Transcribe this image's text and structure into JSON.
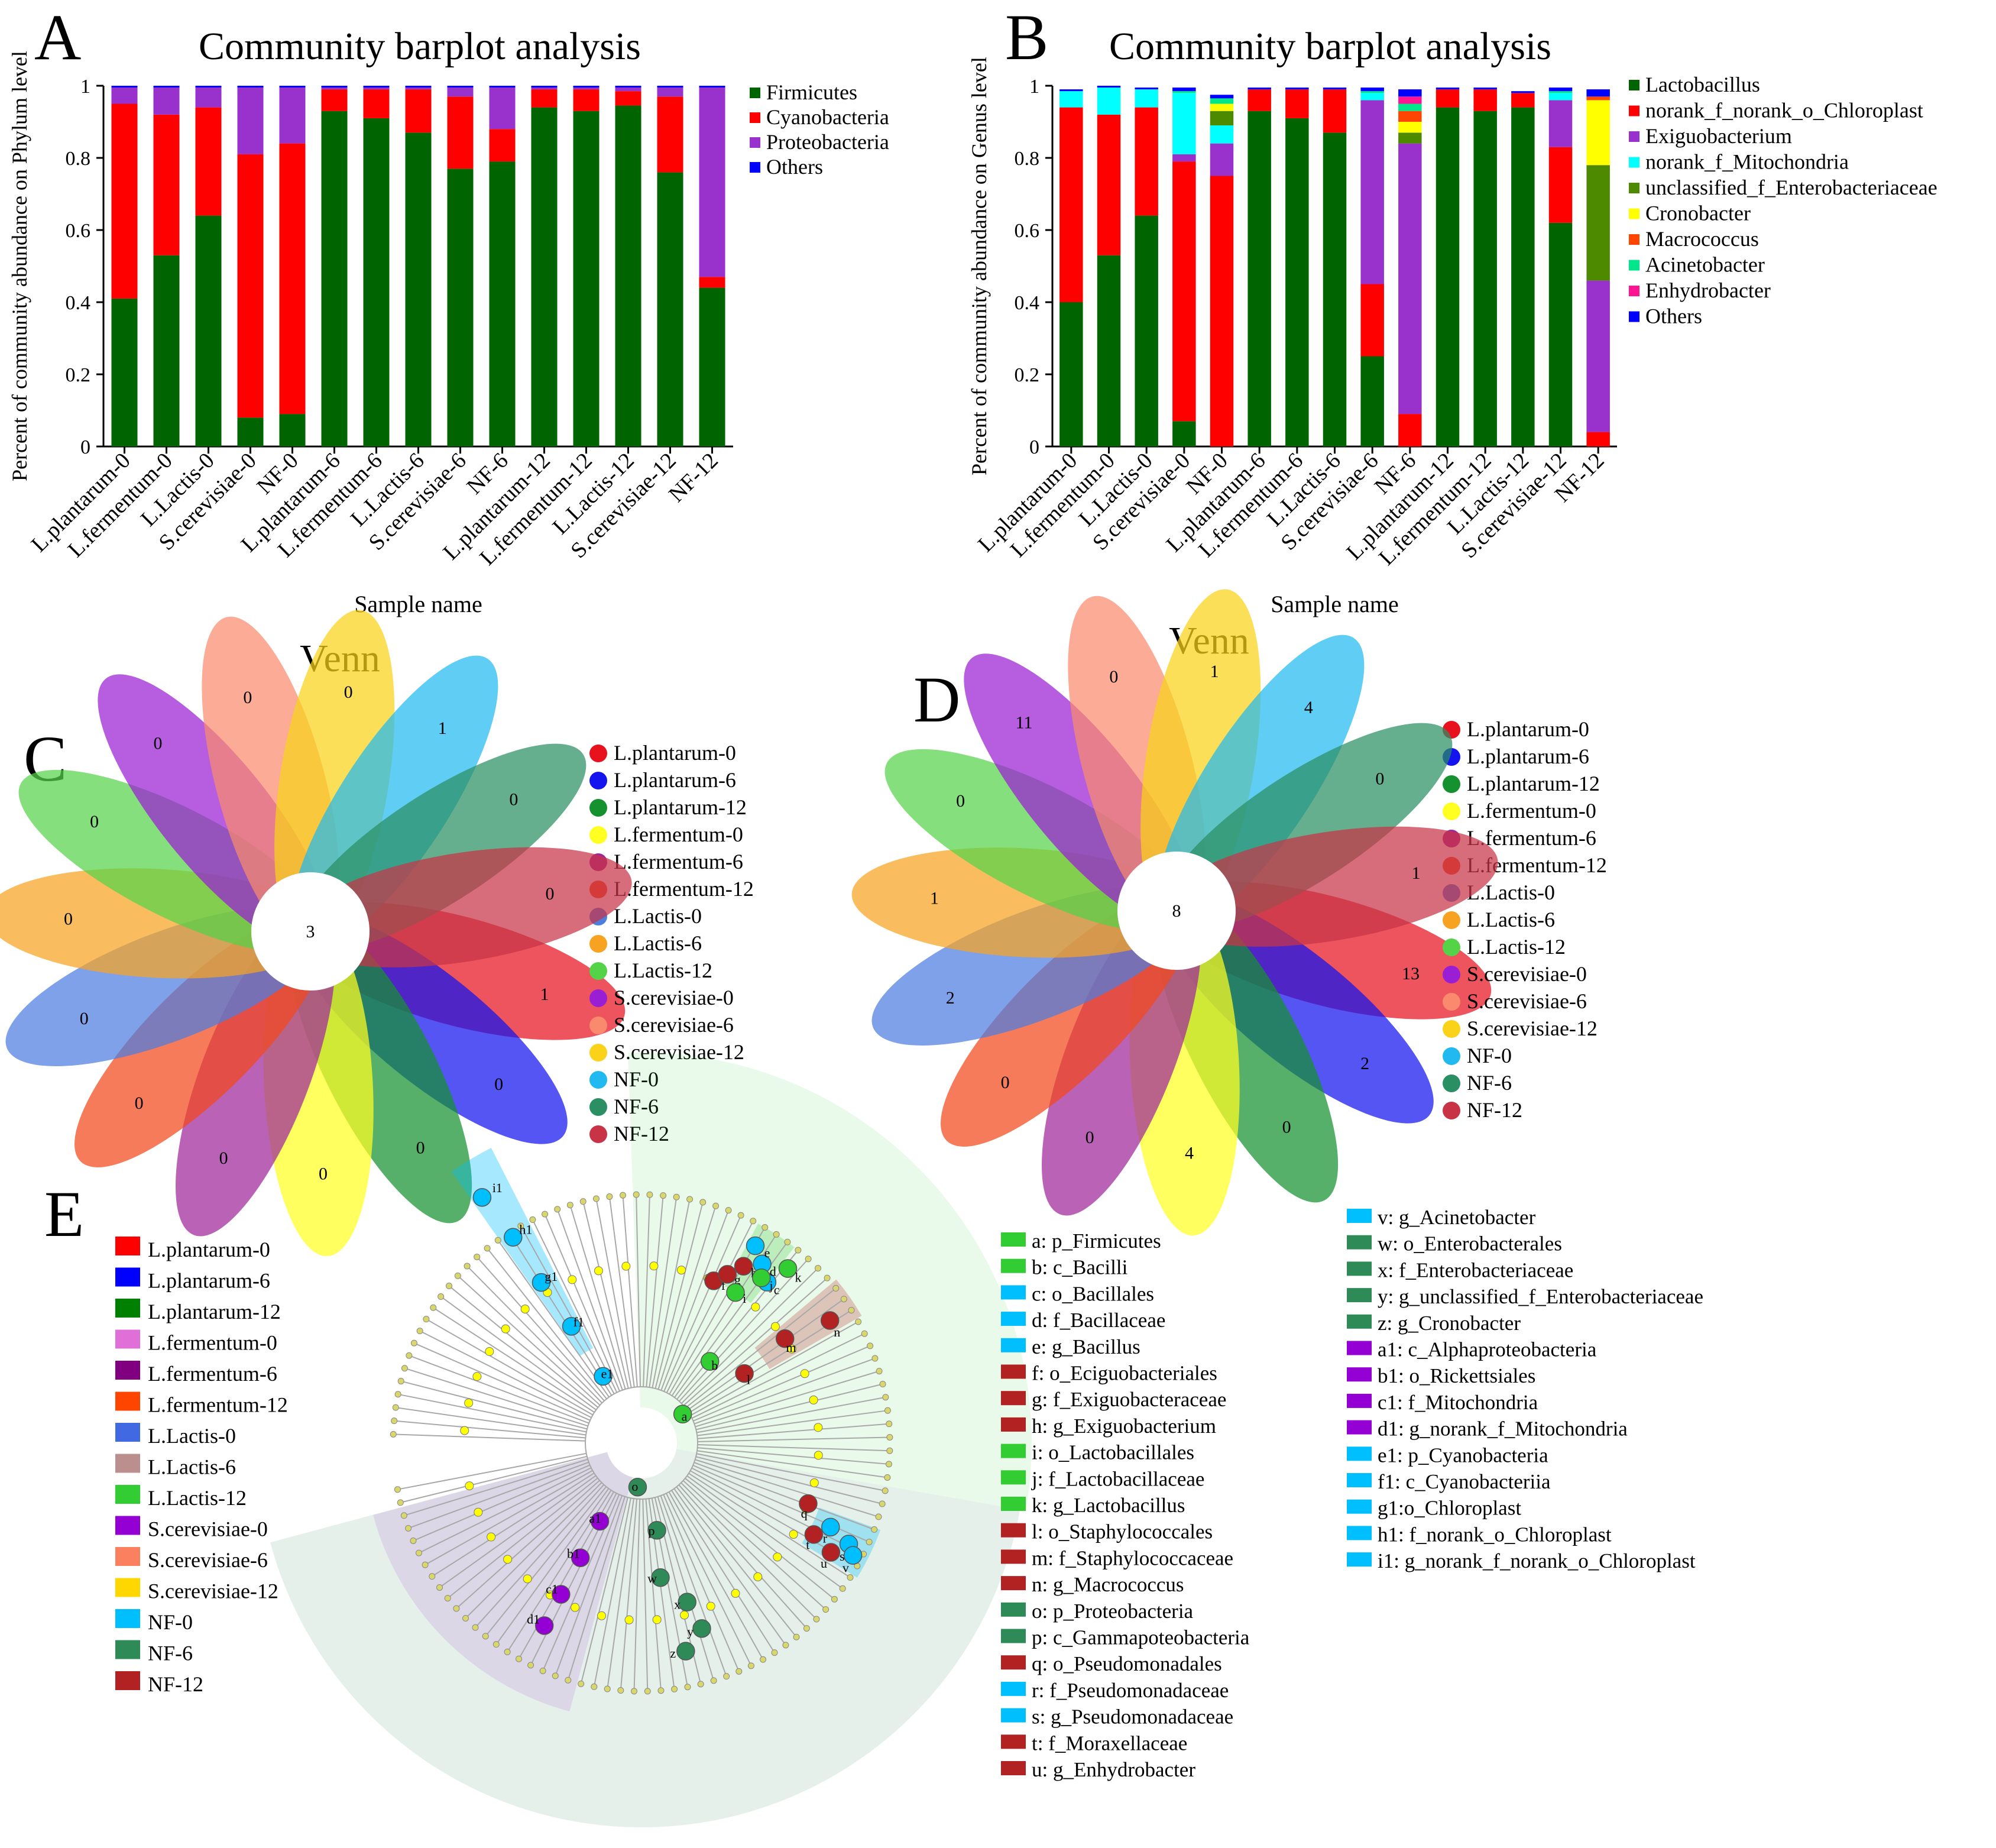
{
  "panel_labels": [
    "A",
    "B",
    "C",
    "D",
    "E"
  ],
  "colors": {
    "green": "#006400",
    "red": "#ff0000",
    "purple": "#9932cc",
    "blue": "#0000ff",
    "cyan": "#00ffff",
    "olive": "#4e8a00",
    "yellow": "#ffff00",
    "orange": "#ff4500",
    "springgreen": "#00e68a",
    "pink": "#ff1493"
  },
  "chart_data": [
    {
      "type": "bar",
      "stacked": true,
      "panel": "A",
      "title": "Community barplot analysis",
      "xlabel": "Sample name",
      "ylabel": "Percent of community abundance on Phylum level",
      "ylim": [
        0,
        1
      ],
      "yticks": [
        "0",
        "0.2",
        "0.4",
        "0.6",
        "0.8",
        "1"
      ],
      "categories": [
        "L.plantarum-0",
        "L.fermentum-0",
        "L.Lactis-0",
        "S.cerevisiae-0",
        "NF-0",
        "L.plantarum-6",
        "L.fermentum-6",
        "L.Lactis-6",
        "S.cerevisiae-6",
        "NF-6",
        "L.plantarum-12",
        "L.fermentum-12",
        "L.Lactis-12",
        "S.cerevisiae-12",
        "NF-12"
      ],
      "series": [
        {
          "name": "Firmicutes",
          "color": "#006400",
          "values": [
            0.41,
            0.53,
            0.64,
            0.08,
            0.09,
            0.93,
            0.91,
            0.87,
            0.77,
            0.79,
            0.94,
            0.93,
            0.945,
            0.76,
            0.44
          ]
        },
        {
          "name": "Cyanobacteria",
          "color": "#ff0000",
          "values": [
            0.54,
            0.39,
            0.3,
            0.73,
            0.75,
            0.06,
            0.08,
            0.12,
            0.2,
            0.09,
            0.05,
            0.06,
            0.04,
            0.21,
            0.03
          ]
        },
        {
          "name": "Proteobacteria",
          "color": "#9932cc",
          "values": [
            0.045,
            0.075,
            0.055,
            0.185,
            0.155,
            0.005,
            0.005,
            0.005,
            0.025,
            0.115,
            0.005,
            0.005,
            0.01,
            0.025,
            0.525
          ]
        },
        {
          "name": "Others",
          "color": "#0000ff",
          "values": [
            0.005,
            0.005,
            0.005,
            0.005,
            0.005,
            0.005,
            0.005,
            0.005,
            0.005,
            0.005,
            0.005,
            0.005,
            0.005,
            0.005,
            0.005
          ]
        }
      ]
    },
    {
      "type": "bar",
      "stacked": true,
      "panel": "B",
      "title": "Community barplot analysis",
      "xlabel": "Sample name",
      "ylabel": "Percent of community abundance on Genus level",
      "ylim": [
        0,
        1
      ],
      "yticks": [
        "0",
        "0.2",
        "0.4",
        "0.6",
        "0.8",
        "1"
      ],
      "categories": [
        "L.plantarum-0",
        "L.fermentum-0",
        "L.Lactis-0",
        "S.cerevisiae-0",
        "NF-0",
        "L.plantarum-6",
        "L.fermentum-6",
        "L.Lactis-6",
        "S.cerevisiae-6",
        "NF-6",
        "L.plantarum-12",
        "L.fermentum-12",
        "L.Lactis-12",
        "S.cerevisiae-12",
        "NF-12"
      ],
      "series": [
        {
          "name": "Lactobacillus",
          "color": "#006400",
          "values": [
            0.4,
            0.53,
            0.64,
            0.07,
            0.0,
            0.93,
            0.91,
            0.87,
            0.25,
            0.0,
            0.94,
            0.93,
            0.94,
            0.62,
            0.0
          ]
        },
        {
          "name": "norank_f_norank_o_Chloroplast",
          "color": "#ff0000",
          "values": [
            0.54,
            0.39,
            0.3,
            0.72,
            0.75,
            0.06,
            0.08,
            0.12,
            0.2,
            0.09,
            0.05,
            0.06,
            0.04,
            0.21,
            0.04
          ]
        },
        {
          "name": "Exiguobacterium",
          "color": "#9932cc",
          "values": [
            0.0,
            0.0,
            0.0,
            0.02,
            0.09,
            0.0,
            0.0,
            0.0,
            0.51,
            0.75,
            0.0,
            0.0,
            0.0,
            0.13,
            0.42
          ]
        },
        {
          "name": "norank_f_Mitochondria",
          "color": "#00ffff",
          "values": [
            0.045,
            0.075,
            0.05,
            0.17,
            0.05,
            0.0,
            0.0,
            0.0,
            0.02,
            0.0,
            0.0,
            0.0,
            0.0,
            0.02,
            0.0
          ]
        },
        {
          "name": "unclassified_f_Enterobacteriaceae",
          "color": "#4e8a00",
          "values": [
            0.0,
            0.0,
            0.0,
            0.0,
            0.04,
            0.0,
            0.0,
            0.0,
            0.0,
            0.03,
            0.0,
            0.0,
            0.0,
            0.0,
            0.32
          ]
        },
        {
          "name": "Cronobacter",
          "color": "#ffff00",
          "values": [
            0.0,
            0.0,
            0.0,
            0.0,
            0.02,
            0.0,
            0.0,
            0.0,
            0.0,
            0.03,
            0.0,
            0.0,
            0.0,
            0.0,
            0.18
          ]
        },
        {
          "name": "Macrococcus",
          "color": "#ff4500",
          "values": [
            0.0,
            0.0,
            0.0,
            0.0,
            0.0,
            0.0,
            0.0,
            0.0,
            0.0,
            0.03,
            0.0,
            0.0,
            0.0,
            0.0,
            0.01
          ]
        },
        {
          "name": "Acinetobacter",
          "color": "#00e68a",
          "values": [
            0.0,
            0.0,
            0.0,
            0.005,
            0.015,
            0.0,
            0.0,
            0.0,
            0.005,
            0.02,
            0.0,
            0.0,
            0.0,
            0.005,
            0.0
          ]
        },
        {
          "name": "Enhydrobacter",
          "color": "#ff1493",
          "values": [
            0.0,
            0.0,
            0.0,
            0.0,
            0.0,
            0.0,
            0.0,
            0.0,
            0.0,
            0.02,
            0.0,
            0.0,
            0.0,
            0.0,
            0.0
          ]
        },
        {
          "name": "Others",
          "color": "#0000ff",
          "values": [
            0.005,
            0.005,
            0.005,
            0.01,
            0.01,
            0.005,
            0.005,
            0.005,
            0.01,
            0.02,
            0.005,
            0.005,
            0.005,
            0.01,
            0.02
          ]
        }
      ]
    },
    {
      "type": "venn",
      "panel": "C",
      "title": "Venn",
      "center": "3",
      "petals": [
        {
          "name": "L.plantarum-0",
          "color": "#e8121e",
          "count": "1"
        },
        {
          "name": "L.plantarum-6",
          "color": "#1414ee",
          "count": "0"
        },
        {
          "name": "L.plantarum-12",
          "color": "#159130",
          "count": "0"
        },
        {
          "name": "L.fermentum-0",
          "color": "#ffff22",
          "count": "0"
        },
        {
          "name": "L.fermentum-6",
          "color": "#a0279a",
          "count": "0"
        },
        {
          "name": "L.fermentum-12",
          "color": "#f2481c",
          "count": "0"
        },
        {
          "name": "L.Lactis-0",
          "color": "#4e7de0",
          "count": "0"
        },
        {
          "name": "L.Lactis-6",
          "color": "#f7a321",
          "count": "0"
        },
        {
          "name": "L.Lactis-12",
          "color": "#54d349",
          "count": "0"
        },
        {
          "name": "S.cerevisiae-0",
          "color": "#9a1ed4",
          "count": "0"
        },
        {
          "name": "S.cerevisiae-6",
          "color": "#fa8a6e",
          "count": "0"
        },
        {
          "name": "S.cerevisiae-12",
          "color": "#fad219",
          "count": "0"
        },
        {
          "name": "NF-0",
          "color": "#21baf0",
          "count": "1"
        },
        {
          "name": "NF-6",
          "color": "#2a8f62",
          "count": "0"
        },
        {
          "name": "NF-12",
          "color": "#c83446",
          "count": "0"
        }
      ]
    },
    {
      "type": "venn",
      "panel": "D",
      "title": "Venn",
      "center": "8",
      "petals": [
        {
          "name": "L.plantarum-0",
          "color": "#e8121e",
          "count": "13"
        },
        {
          "name": "L.plantarum-6",
          "color": "#1414ee",
          "count": "2"
        },
        {
          "name": "L.plantarum-12",
          "color": "#159130",
          "count": "0"
        },
        {
          "name": "L.fermentum-0",
          "color": "#ffff22",
          "count": "4"
        },
        {
          "name": "L.fermentum-6",
          "color": "#a0279a",
          "count": "0"
        },
        {
          "name": "L.fermentum-12",
          "color": "#f2481c",
          "count": "0"
        },
        {
          "name": "L.Lactis-0",
          "color": "#4e7de0",
          "count": "2"
        },
        {
          "name": "L.Lactis-6",
          "color": "#f7a321",
          "count": "1"
        },
        {
          "name": "L.Lactis-12",
          "color": "#54d349",
          "count": "0"
        },
        {
          "name": "S.cerevisiae-0",
          "color": "#9a1ed4",
          "count": "11"
        },
        {
          "name": "S.cerevisiae-6",
          "color": "#fa8a6e",
          "count": "0"
        },
        {
          "name": "S.cerevisiae-12",
          "color": "#fad219",
          "count": "1"
        },
        {
          "name": "NF-0",
          "color": "#21baf0",
          "count": "4"
        },
        {
          "name": "NF-6",
          "color": "#2a8f62",
          "count": "0"
        },
        {
          "name": "NF-12",
          "color": "#c83446",
          "count": "1"
        }
      ]
    },
    {
      "type": "cladogram",
      "panel": "E",
      "group_legend": [
        {
          "name": "L.plantarum-0",
          "color": "#ff0000"
        },
        {
          "name": "L.plantarum-6",
          "color": "#0000ff"
        },
        {
          "name": "L.plantarum-12",
          "color": "#008000"
        },
        {
          "name": "L.fermentum-0",
          "color": "#e070d8"
        },
        {
          "name": "L.fermentum-6",
          "color": "#800080"
        },
        {
          "name": "L.fermentum-12",
          "color": "#ff4500"
        },
        {
          "name": "L.Lactis-0",
          "color": "#4169e1"
        },
        {
          "name": "L.Lactis-6",
          "color": "#bc8f8f"
        },
        {
          "name": "L.Lactis-12",
          "color": "#32cd32"
        },
        {
          "name": "S.cerevisiae-0",
          "color": "#9400d3"
        },
        {
          "name": "S.cerevisiae-6",
          "color": "#fa8060"
        },
        {
          "name": "S.cerevisiae-12",
          "color": "#ffd700"
        },
        {
          "name": "NF-0",
          "color": "#00bfff"
        },
        {
          "name": "NF-6",
          "color": "#2e8b57"
        },
        {
          "name": "NF-12",
          "color": "#b22222"
        }
      ],
      "taxa_col1": [
        {
          "label": "a: p_Firmicutes",
          "color": "#32cd32"
        },
        {
          "label": "b: c_Bacilli",
          "color": "#32cd32"
        },
        {
          "label": "c: o_Bacillales",
          "color": "#00bfff"
        },
        {
          "label": "d: f_Bacillaceae",
          "color": "#00bfff"
        },
        {
          "label": "e: g_Bacillus",
          "color": "#00bfff"
        },
        {
          "label": "f: o_Eciguobacteriales",
          "color": "#b22222"
        },
        {
          "label": "g: f_Exiguobacteraceae",
          "color": "#b22222"
        },
        {
          "label": "h: g_Exiguobacterium",
          "color": "#b22222"
        },
        {
          "label": "i: o_Lactobacillales",
          "color": "#32cd32"
        },
        {
          "label": "j: f_Lactobacillaceae",
          "color": "#32cd32"
        },
        {
          "label": "k: g_Lactobacillus",
          "color": "#32cd32"
        },
        {
          "label": "l: o_Staphylococcales",
          "color": "#b22222"
        },
        {
          "label": "m: f_Staphylococcaceae",
          "color": "#b22222"
        },
        {
          "label": "n: g_Macrococcus",
          "color": "#b22222"
        },
        {
          "label": "o: p_Proteobacteria",
          "color": "#2e8b57"
        },
        {
          "label": "p: c_Gammapoteobacteria",
          "color": "#2e8b57"
        },
        {
          "label": "q: o_Pseudomonadales",
          "color": "#b22222"
        },
        {
          "label": "r: f_Pseudomonadaceae",
          "color": "#00bfff"
        },
        {
          "label": "s: g_Pseudomonadaceae",
          "color": "#00bfff"
        },
        {
          "label": "t: f_Moraxellaceae",
          "color": "#b22222"
        },
        {
          "label": "u: g_Enhydrobacter",
          "color": "#b22222"
        }
      ],
      "taxa_col2": [
        {
          "label": "v: g_Acinetobacter",
          "color": "#00bfff"
        },
        {
          "label": "w: o_Enterobacterales",
          "color": "#2e8b57"
        },
        {
          "label": "x: f_Enterobacteriaceae",
          "color": "#2e8b57"
        },
        {
          "label": "y: g_unclassified_f_Enterobacteriaceae",
          "color": "#2e8b57"
        },
        {
          "label": "z: g_Cronobacter",
          "color": "#2e8b57"
        },
        {
          "label": "a1: c_Alphaproteobacteria",
          "color": "#9400d3"
        },
        {
          "label": "b1: o_Rickettsiales",
          "color": "#9400d3"
        },
        {
          "label": "c1: f_Mitochondria",
          "color": "#9400d3"
        },
        {
          "label": "d1: g_norank_f_Mitochondria",
          "color": "#9400d3"
        },
        {
          "label": "e1: p_Cyanobacteria",
          "color": "#00bfff"
        },
        {
          "label": "f1: c_Cyanobacteriia",
          "color": "#00bfff"
        },
        {
          "label": "g1:o_Chloroplast",
          "color": "#00bfff"
        },
        {
          "label": "h1: f_norank_o_Chloroplast",
          "color": "#00bfff"
        },
        {
          "label": "i1: g_norank_f_norank_o_Chloroplast",
          "color": "#00bfff"
        }
      ],
      "node_letters": [
        "a",
        "b",
        "c",
        "d",
        "e",
        "f",
        "g",
        "h",
        "i",
        "j",
        "k",
        "l",
        "m",
        "n",
        "o",
        "p",
        "q",
        "r",
        "s",
        "t",
        "u",
        "v",
        "w",
        "x",
        "y",
        "z",
        "a1",
        "b1",
        "c1",
        "d1",
        "e1",
        "f1",
        "g1",
        "h1",
        "i1"
      ]
    }
  ]
}
